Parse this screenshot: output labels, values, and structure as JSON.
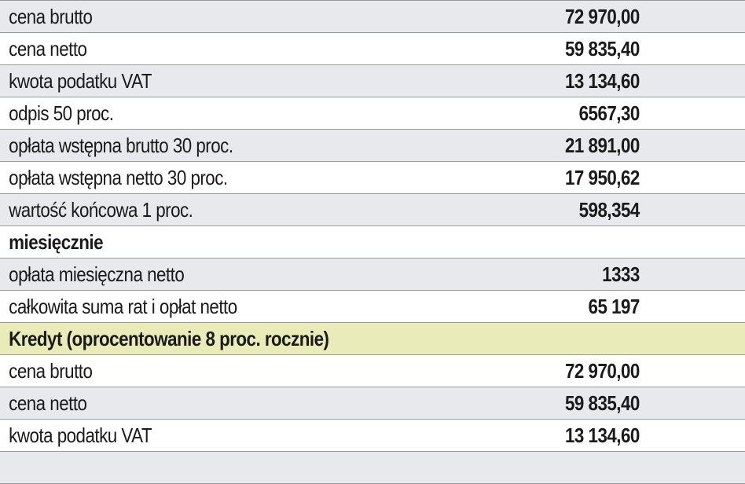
{
  "leasing_rows": [
    {
      "label": "cena brutto",
      "value": "72 970,00"
    },
    {
      "label": "cena netto",
      "value": "59 835,40"
    },
    {
      "label": "kwota podatku VAT",
      "value": "13 134,60"
    },
    {
      "label": "odpis 50 proc.",
      "value": "6567,30"
    },
    {
      "label": "opłata wstępna brutto 30 proc.",
      "value": "21 891,00"
    },
    {
      "label": "opłata wstępna netto 30 proc.",
      "value": "17 950,62"
    },
    {
      "label": "wartość końcowa 1 proc.",
      "value": "598,354"
    }
  ],
  "monthly_header": "miesięcznie",
  "monthly_rows": [
    {
      "label": "opłata miesięczna netto",
      "value": "1333"
    },
    {
      "label": "całkowita suma rat i opłat netto",
      "value": "65 197"
    }
  ],
  "credit_header": "Kredyt (oprocentowanie 8 proc. rocznie)",
  "credit_rows": [
    {
      "label": "cena brutto",
      "value": "72 970,00"
    },
    {
      "label": "cena netto",
      "value": "59 835,40"
    },
    {
      "label": "kwota podatku VAT",
      "value": "13 134,60"
    },
    {
      "label": "",
      "value": ""
    }
  ]
}
